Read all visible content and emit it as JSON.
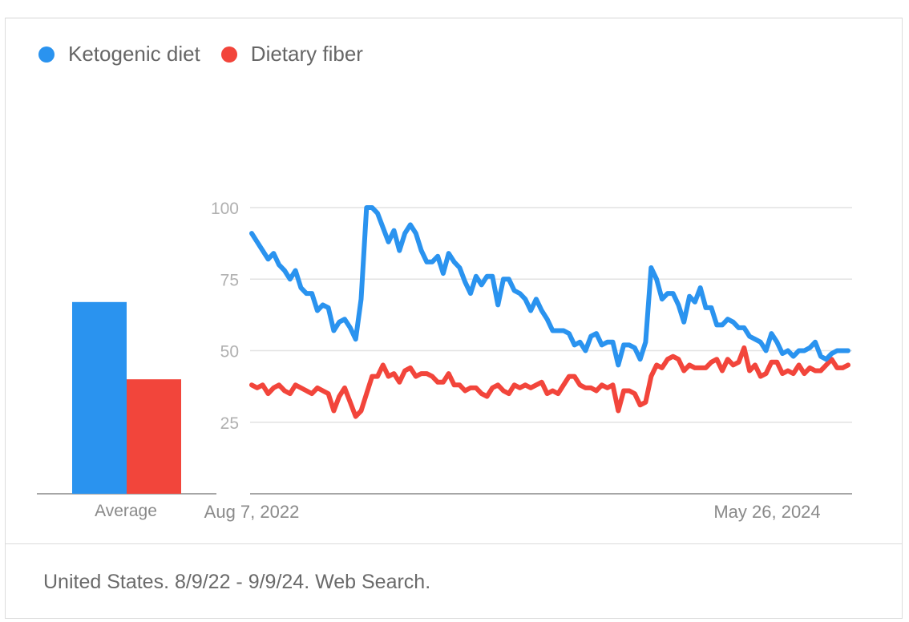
{
  "legend": {
    "items": [
      {
        "label": "Ketogenic diet",
        "color": "#2a93ef"
      },
      {
        "label": "Dietary fiber",
        "color": "#f2453b"
      }
    ]
  },
  "footer": {
    "text": "United States. 8/9/22 - 9/9/24. Web Search."
  },
  "chart_data": [
    {
      "type": "bar",
      "categories": [
        "Average"
      ],
      "series": [
        {
          "name": "Ketogenic diet",
          "values": [
            67
          ],
          "color": "#2a93ef"
        },
        {
          "name": "Dietary fiber",
          "values": [
            40
          ],
          "color": "#f2453b"
        }
      ],
      "ylim": [
        0,
        100
      ]
    },
    {
      "type": "line",
      "x_tick_labels": [
        "Aug 7, 2022",
        "May 26, 2024"
      ],
      "y_ticks": [
        25,
        50,
        75,
        100
      ],
      "ylim": [
        0,
        100
      ],
      "grid": true,
      "series": [
        {
          "name": "Ketogenic diet",
          "color": "#2a93ef",
          "values": [
            91,
            88,
            85,
            82,
            84,
            80,
            78,
            75,
            78,
            72,
            70,
            70,
            64,
            66,
            65,
            57,
            60,
            61,
            58,
            54,
            68,
            100,
            100,
            98,
            93,
            88,
            92,
            85,
            91,
            94,
            91,
            85,
            81,
            81,
            83,
            77,
            84,
            81,
            79,
            74,
            70,
            76,
            73,
            76,
            76,
            66,
            75,
            75,
            71,
            70,
            68,
            64,
            68,
            64,
            61,
            57,
            57,
            57,
            56,
            52,
            53,
            50,
            55,
            56,
            52,
            53,
            53,
            45,
            52,
            52,
            51,
            47,
            53,
            79,
            75,
            68,
            70,
            70,
            66,
            60,
            69,
            67,
            72,
            65,
            65,
            59,
            59,
            61,
            60,
            58,
            58,
            55,
            54,
            53,
            50,
            56,
            53,
            49,
            50,
            48,
            50,
            50,
            51,
            53,
            48,
            47,
            49,
            50,
            50,
            50
          ]
        },
        {
          "name": "Dietary fiber",
          "color": "#f2453b",
          "values": [
            38,
            37,
            38,
            35,
            37,
            38,
            36,
            35,
            38,
            37,
            36,
            35,
            37,
            36,
            35,
            29,
            34,
            37,
            32,
            27,
            29,
            35,
            41,
            41,
            45,
            41,
            42,
            39,
            43,
            44,
            41,
            42,
            42,
            41,
            39,
            39,
            42,
            38,
            38,
            36,
            37,
            37,
            35,
            34,
            37,
            38,
            36,
            35,
            38,
            37,
            38,
            37,
            38,
            39,
            35,
            36,
            35,
            38,
            41,
            41,
            38,
            37,
            37,
            36,
            38,
            37,
            38,
            29,
            36,
            36,
            35,
            31,
            32,
            41,
            45,
            44,
            47,
            48,
            47,
            43,
            45,
            44,
            44,
            44,
            46,
            47,
            43,
            47,
            45,
            46,
            51,
            43,
            45,
            41,
            42,
            46,
            46,
            42,
            43,
            42,
            45,
            42,
            44,
            43,
            43,
            45,
            47,
            44,
            44,
            45
          ]
        }
      ]
    }
  ]
}
